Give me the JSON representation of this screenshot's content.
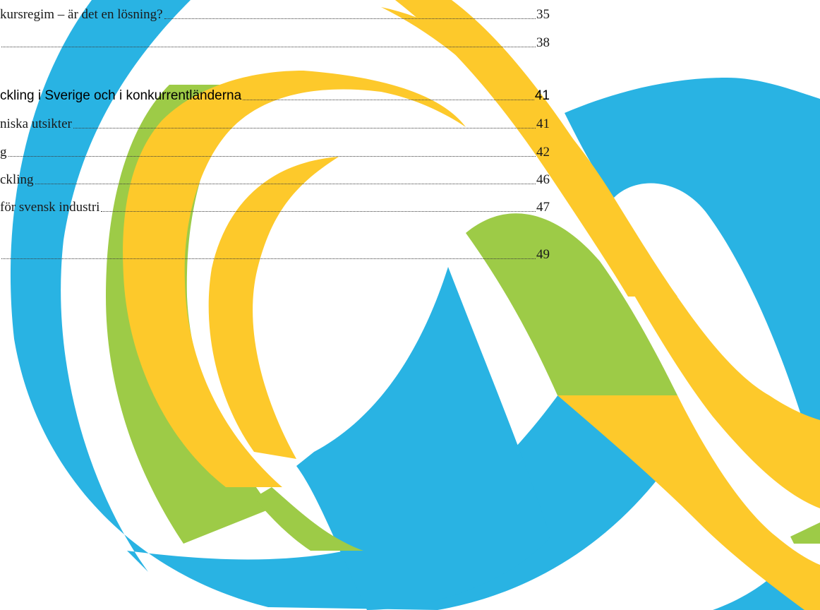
{
  "colors": {
    "blue": "#29B3E3",
    "yellow": "#FDC92B",
    "green": "#9DCB47",
    "text": "#1a1a1a"
  },
  "toc": {
    "entries": [
      {
        "title": "kursregim – är det en lösning?",
        "page": "35",
        "level": "section"
      },
      {
        "title": "",
        "page": "38",
        "level": "section"
      },
      {
        "title": "ckling i Sverige och i konkurrentländerna",
        "page": "41",
        "level": "chapter"
      },
      {
        "title": "niska utsikter",
        "page": "41",
        "level": "section"
      },
      {
        "title": "g",
        "page": "42",
        "level": "section"
      },
      {
        "title": "ckling",
        "page": "46",
        "level": "section"
      },
      {
        "title": " för svensk industri",
        "page": "47",
        "level": "section"
      },
      {
        "title": "",
        "page": "49",
        "level": "section"
      }
    ]
  }
}
